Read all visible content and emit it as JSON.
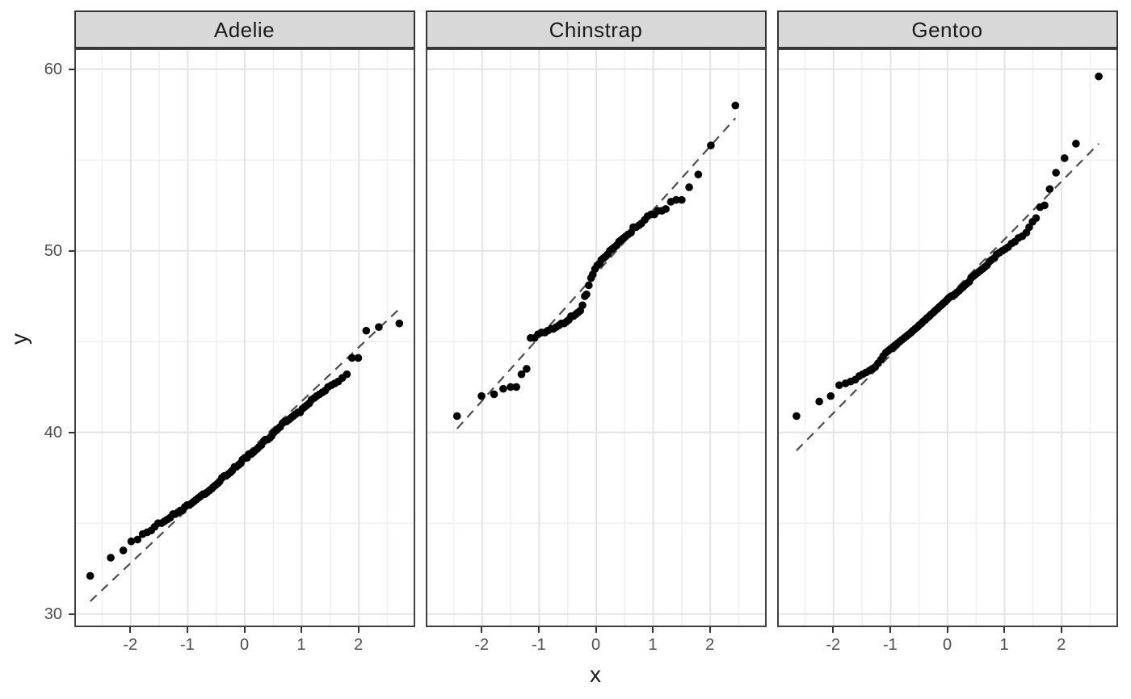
{
  "chart_data": {
    "type": "scatter",
    "description": "Faceted normal Q-Q plot with dashed reference lines, one panel per penguin species",
    "xlabel": "x",
    "ylabel": "y",
    "x_ticks": [
      -2,
      -1,
      0,
      1,
      2
    ],
    "x_minor": [
      -2.5,
      -1.5,
      -0.5,
      0.5,
      1.5,
      2.5
    ],
    "y_ticks": [
      30,
      40,
      50,
      60
    ],
    "y_minor": [
      35,
      45,
      55
    ],
    "xlim": [
      -2.96,
      2.96
    ],
    "ylim": [
      29.4,
      61.1
    ],
    "grid": "on",
    "legend": "none",
    "colors": {
      "point": "#000000",
      "ref_line": "#4d4d4d",
      "grid_major": "#e4e4e4",
      "grid_minor": "#efefef",
      "strip_fill": "#d8d8d8",
      "strip_border": "#333333",
      "panel_border": "#404040",
      "tick_text": "#4d4d4d",
      "title_text": "#1a1a1a",
      "background": "#ffffff"
    },
    "facets": [
      {
        "label": "Adelie",
        "ref_line": {
          "x1": -2.71,
          "y1": 30.7,
          "x2": 2.71,
          "y2": 46.8
        },
        "points": [
          [
            -2.71,
            32.1
          ],
          [
            -2.35,
            33.1
          ],
          [
            -2.13,
            33.5
          ],
          [
            -1.99,
            34.0
          ],
          [
            -1.88,
            34.1
          ],
          [
            -1.79,
            34.4
          ],
          [
            -1.71,
            34.5
          ],
          [
            -1.64,
            34.6
          ],
          [
            -1.58,
            34.8
          ],
          [
            -1.52,
            35.0
          ],
          [
            -1.46,
            35.0
          ],
          [
            -1.41,
            35.1
          ],
          [
            -1.36,
            35.2
          ],
          [
            -1.31,
            35.3
          ],
          [
            -1.26,
            35.5
          ],
          [
            -1.22,
            35.5
          ],
          [
            -1.17,
            35.6
          ],
          [
            -1.13,
            35.7
          ],
          [
            -1.09,
            35.7
          ],
          [
            -1.05,
            35.9
          ],
          [
            -1.01,
            36.0
          ],
          [
            -0.97,
            36.0
          ],
          [
            -0.93,
            36.1
          ],
          [
            -0.89,
            36.2
          ],
          [
            -0.85,
            36.3
          ],
          [
            -0.81,
            36.4
          ],
          [
            -0.77,
            36.5
          ],
          [
            -0.73,
            36.6
          ],
          [
            -0.7,
            36.6
          ],
          [
            -0.66,
            36.7
          ],
          [
            -0.62,
            36.8
          ],
          [
            -0.58,
            36.9
          ],
          [
            -0.55,
            37.0
          ],
          [
            -0.51,
            37.1
          ],
          [
            -0.47,
            37.2
          ],
          [
            -0.44,
            37.3
          ],
          [
            -0.4,
            37.5
          ],
          [
            -0.36,
            37.6
          ],
          [
            -0.33,
            37.6
          ],
          [
            -0.29,
            37.7
          ],
          [
            -0.25,
            37.8
          ],
          [
            -0.22,
            37.9
          ],
          [
            -0.18,
            38.1
          ],
          [
            -0.15,
            38.1
          ],
          [
            -0.11,
            38.2
          ],
          [
            -0.07,
            38.3
          ],
          [
            -0.04,
            38.5
          ],
          [
            0.0,
            38.6
          ],
          [
            0.04,
            38.6
          ],
          [
            0.07,
            38.8
          ],
          [
            0.11,
            38.8
          ],
          [
            0.15,
            38.9
          ],
          [
            0.18,
            39.0
          ],
          [
            0.22,
            39.1
          ],
          [
            0.25,
            39.2
          ],
          [
            0.29,
            39.3
          ],
          [
            0.33,
            39.5
          ],
          [
            0.36,
            39.6
          ],
          [
            0.4,
            39.6
          ],
          [
            0.44,
            39.7
          ],
          [
            0.47,
            39.8
          ],
          [
            0.51,
            40.0
          ],
          [
            0.55,
            40.1
          ],
          [
            0.58,
            40.2
          ],
          [
            0.62,
            40.3
          ],
          [
            0.66,
            40.5
          ],
          [
            0.7,
            40.6
          ],
          [
            0.73,
            40.6
          ],
          [
            0.77,
            40.7
          ],
          [
            0.81,
            40.8
          ],
          [
            0.85,
            40.9
          ],
          [
            0.89,
            41.0
          ],
          [
            0.93,
            41.1
          ],
          [
            0.97,
            41.1
          ],
          [
            1.01,
            41.3
          ],
          [
            1.05,
            41.4
          ],
          [
            1.09,
            41.5
          ],
          [
            1.13,
            41.6
          ],
          [
            1.17,
            41.8
          ],
          [
            1.22,
            41.9
          ],
          [
            1.26,
            42.0
          ],
          [
            1.31,
            42.1
          ],
          [
            1.36,
            42.2
          ],
          [
            1.41,
            42.3
          ],
          [
            1.46,
            42.5
          ],
          [
            1.52,
            42.6
          ],
          [
            1.58,
            42.7
          ],
          [
            1.64,
            42.8
          ],
          [
            1.71,
            43.0
          ],
          [
            1.79,
            43.2
          ],
          [
            1.88,
            44.1
          ],
          [
            1.99,
            44.1
          ],
          [
            2.13,
            45.6
          ],
          [
            2.35,
            45.8
          ],
          [
            2.71,
            46.0
          ]
        ]
      },
      {
        "label": "Chinstrap",
        "ref_line": {
          "x1": -2.44,
          "y1": 40.2,
          "x2": 2.44,
          "y2": 57.3
        },
        "points": [
          [
            -2.44,
            40.9
          ],
          [
            -2.01,
            42.0
          ],
          [
            -1.79,
            42.1
          ],
          [
            -1.63,
            42.4
          ],
          [
            -1.5,
            42.5
          ],
          [
            -1.4,
            42.5
          ],
          [
            -1.31,
            43.2
          ],
          [
            -1.22,
            43.5
          ],
          [
            -1.15,
            45.2
          ],
          [
            -1.08,
            45.2
          ],
          [
            -1.02,
            45.4
          ],
          [
            -0.96,
            45.5
          ],
          [
            -0.9,
            45.5
          ],
          [
            -0.85,
            45.6
          ],
          [
            -0.79,
            45.7
          ],
          [
            -0.75,
            45.7
          ],
          [
            -0.7,
            45.8
          ],
          [
            -0.65,
            45.9
          ],
          [
            -0.61,
            46.0
          ],
          [
            -0.56,
            46.0
          ],
          [
            -0.52,
            46.1
          ],
          [
            -0.48,
            46.2
          ],
          [
            -0.44,
            46.4
          ],
          [
            -0.4,
            46.4
          ],
          [
            -0.36,
            46.5
          ],
          [
            -0.32,
            46.6
          ],
          [
            -0.28,
            46.7
          ],
          [
            -0.24,
            47.0
          ],
          [
            -0.2,
            47.5
          ],
          [
            -0.17,
            47.6
          ],
          [
            -0.13,
            48.1
          ],
          [
            -0.09,
            48.5
          ],
          [
            -0.06,
            48.7
          ],
          [
            -0.02,
            49.0
          ],
          [
            0.02,
            49.2
          ],
          [
            0.06,
            49.3
          ],
          [
            0.09,
            49.5
          ],
          [
            0.13,
            49.6
          ],
          [
            0.17,
            49.7
          ],
          [
            0.2,
            49.8
          ],
          [
            0.24,
            50.0
          ],
          [
            0.28,
            50.1
          ],
          [
            0.32,
            50.2
          ],
          [
            0.36,
            50.3
          ],
          [
            0.4,
            50.5
          ],
          [
            0.44,
            50.6
          ],
          [
            0.48,
            50.7
          ],
          [
            0.52,
            50.8
          ],
          [
            0.56,
            50.9
          ],
          [
            0.61,
            51.0
          ],
          [
            0.65,
            51.3
          ],
          [
            0.7,
            51.3
          ],
          [
            0.75,
            51.4
          ],
          [
            0.79,
            51.5
          ],
          [
            0.85,
            51.7
          ],
          [
            0.9,
            51.9
          ],
          [
            0.96,
            52.0
          ],
          [
            1.02,
            52.0
          ],
          [
            1.08,
            52.2
          ],
          [
            1.15,
            52.2
          ],
          [
            1.22,
            52.3
          ],
          [
            1.31,
            52.7
          ],
          [
            1.4,
            52.8
          ],
          [
            1.5,
            52.8
          ],
          [
            1.63,
            53.5
          ],
          [
            1.79,
            54.2
          ],
          [
            2.01,
            55.8
          ],
          [
            2.44,
            58.0
          ]
        ]
      },
      {
        "label": "Gentoo",
        "ref_line": {
          "x1": -2.65,
          "y1": 39.0,
          "x2": 2.65,
          "y2": 55.9
        },
        "points": [
          [
            -2.65,
            40.9
          ],
          [
            -2.25,
            41.7
          ],
          [
            -2.05,
            42.0
          ],
          [
            -1.9,
            42.6
          ],
          [
            -1.79,
            42.7
          ],
          [
            -1.7,
            42.8
          ],
          [
            -1.62,
            42.9
          ],
          [
            -1.55,
            43.1
          ],
          [
            -1.49,
            43.2
          ],
          [
            -1.43,
            43.3
          ],
          [
            -1.37,
            43.4
          ],
          [
            -1.32,
            43.5
          ],
          [
            -1.27,
            43.6
          ],
          [
            -1.22,
            43.8
          ],
          [
            -1.17,
            44.0
          ],
          [
            -1.13,
            44.2
          ],
          [
            -1.08,
            44.4
          ],
          [
            -1.04,
            44.5
          ],
          [
            -1.0,
            44.6
          ],
          [
            -0.96,
            44.7
          ],
          [
            -0.92,
            44.8
          ],
          [
            -0.88,
            44.9
          ],
          [
            -0.84,
            45.0
          ],
          [
            -0.8,
            45.1
          ],
          [
            -0.76,
            45.2
          ],
          [
            -0.72,
            45.3
          ],
          [
            -0.68,
            45.4
          ],
          [
            -0.64,
            45.5
          ],
          [
            -0.61,
            45.6
          ],
          [
            -0.57,
            45.7
          ],
          [
            -0.53,
            45.8
          ],
          [
            -0.5,
            45.9
          ],
          [
            -0.46,
            46.0
          ],
          [
            -0.43,
            46.1
          ],
          [
            -0.39,
            46.2
          ],
          [
            -0.36,
            46.3
          ],
          [
            -0.32,
            46.4
          ],
          [
            -0.29,
            46.5
          ],
          [
            -0.25,
            46.6
          ],
          [
            -0.22,
            46.7
          ],
          [
            -0.18,
            46.8
          ],
          [
            -0.15,
            46.9
          ],
          [
            -0.11,
            47.0
          ],
          [
            -0.08,
            47.1
          ],
          [
            -0.04,
            47.2
          ],
          [
            -0.01,
            47.3
          ],
          [
            0.02,
            47.4
          ],
          [
            0.06,
            47.5
          ],
          [
            0.09,
            47.5
          ],
          [
            0.13,
            47.6
          ],
          [
            0.16,
            47.7
          ],
          [
            0.2,
            47.8
          ],
          [
            0.23,
            47.9
          ],
          [
            0.27,
            48.0
          ],
          [
            0.3,
            48.1
          ],
          [
            0.34,
            48.2
          ],
          [
            0.38,
            48.3
          ],
          [
            0.41,
            48.5
          ],
          [
            0.45,
            48.6
          ],
          [
            0.49,
            48.7
          ],
          [
            0.53,
            48.8
          ],
          [
            0.57,
            48.9
          ],
          [
            0.61,
            49.0
          ],
          [
            0.65,
            49.1
          ],
          [
            0.69,
            49.2
          ],
          [
            0.73,
            49.4
          ],
          [
            0.77,
            49.5
          ],
          [
            0.82,
            49.6
          ],
          [
            0.86,
            49.8
          ],
          [
            0.91,
            49.9
          ],
          [
            0.96,
            50.0
          ],
          [
            1.01,
            50.1
          ],
          [
            1.06,
            50.2
          ],
          [
            1.12,
            50.4
          ],
          [
            1.18,
            50.5
          ],
          [
            1.24,
            50.7
          ],
          [
            1.31,
            50.8
          ],
          [
            1.38,
            51.0
          ],
          [
            1.43,
            51.3
          ],
          [
            1.49,
            51.6
          ],
          [
            1.55,
            51.8
          ],
          [
            1.62,
            52.4
          ],
          [
            1.7,
            52.5
          ],
          [
            1.79,
            53.4
          ],
          [
            1.9,
            54.3
          ],
          [
            2.05,
            55.1
          ],
          [
            2.25,
            55.9
          ],
          [
            2.65,
            59.6
          ]
        ]
      }
    ]
  }
}
